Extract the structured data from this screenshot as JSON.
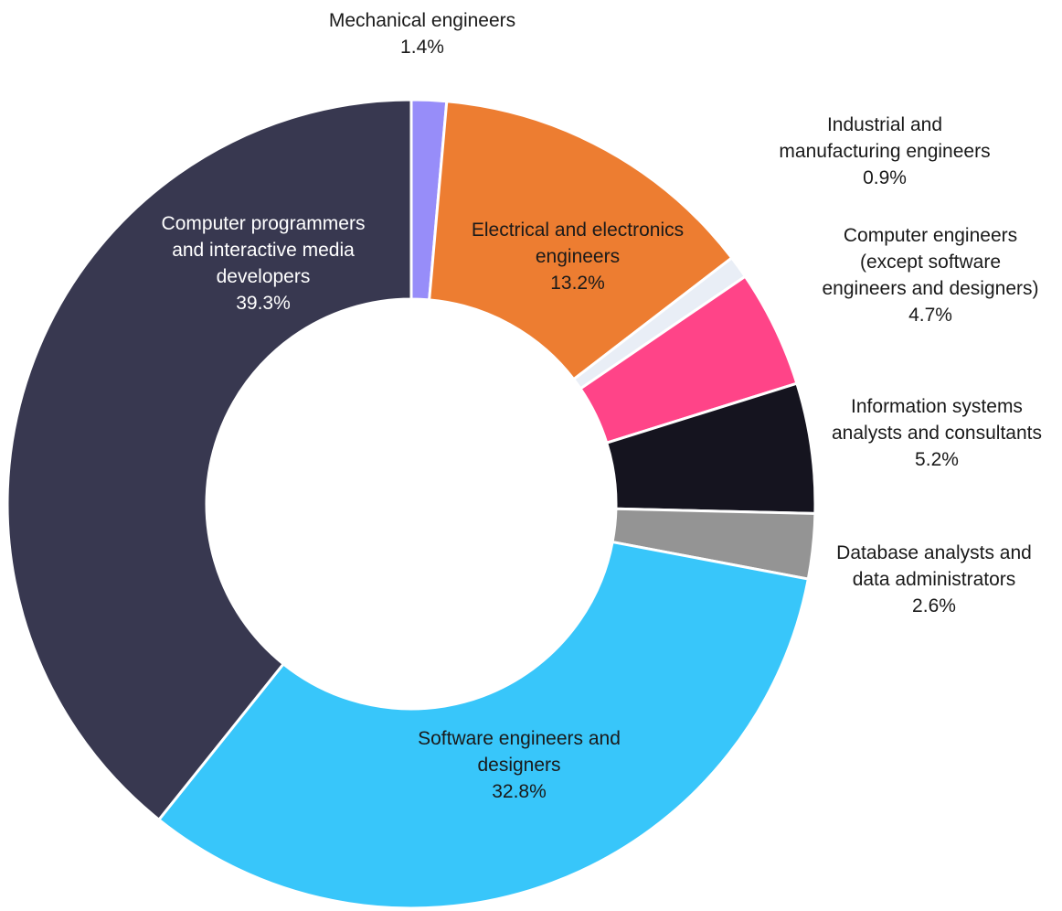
{
  "chart_data": {
    "type": "pie",
    "variant": "donut",
    "start_angle_deg": 0,
    "direction": "clockwise",
    "slices": [
      {
        "label": "Mechanical engineers",
        "lines": [
          "Mechanical engineers"
        ],
        "value": 1.4,
        "value_text": "1.4%",
        "color": "#978df9",
        "label_color": "#1a1a1a",
        "label_placement": "outside"
      },
      {
        "label": "Electrical and electronics engineers",
        "lines": [
          "Electrical and electronics",
          "engineers"
        ],
        "value": 13.2,
        "value_text": "13.2%",
        "color": "#ed7d31",
        "label_color": "#1a1a1a",
        "label_placement": "inside"
      },
      {
        "label": "Industrial and manufacturing engineers",
        "lines": [
          "Industrial and",
          "manufacturing engineers"
        ],
        "value": 0.9,
        "value_text": "0.9%",
        "color": "#e9eef6",
        "label_color": "#1a1a1a",
        "label_placement": "outside"
      },
      {
        "label": "Computer engineers (except software engineers and designers)",
        "lines": [
          "Computer engineers",
          "(except software",
          "engineers and designers)"
        ],
        "value": 4.7,
        "value_text": "4.7%",
        "color": "#ff4488",
        "label_color": "#1a1a1a",
        "label_placement": "outside"
      },
      {
        "label": "Information systems analysts and consultants",
        "lines": [
          "Information systems",
          "analysts and consultants"
        ],
        "value": 5.2,
        "value_text": "5.2%",
        "color": "#15141f",
        "label_color": "#1a1a1a",
        "label_placement": "outside"
      },
      {
        "label": "Database analysts and data administrators",
        "lines": [
          "Database analysts and",
          "data administrators"
        ],
        "value": 2.6,
        "value_text": "2.6%",
        "color": "#949494",
        "label_color": "#1a1a1a",
        "label_placement": "outside"
      },
      {
        "label": "Software engineers and designers",
        "lines": [
          "Software engineers and",
          "designers"
        ],
        "value": 32.8,
        "value_text": "32.8%",
        "color": "#38c6fa",
        "label_color": "#1a1a1a",
        "label_placement": "inside"
      },
      {
        "label": "Computer programmers and interactive media developers",
        "lines": [
          "Computer programmers",
          "and interactive media",
          "developers"
        ],
        "value": 39.3,
        "value_text": "39.3%",
        "color": "#383850",
        "label_color": "#ffffff",
        "label_placement": "inside"
      }
    ]
  }
}
